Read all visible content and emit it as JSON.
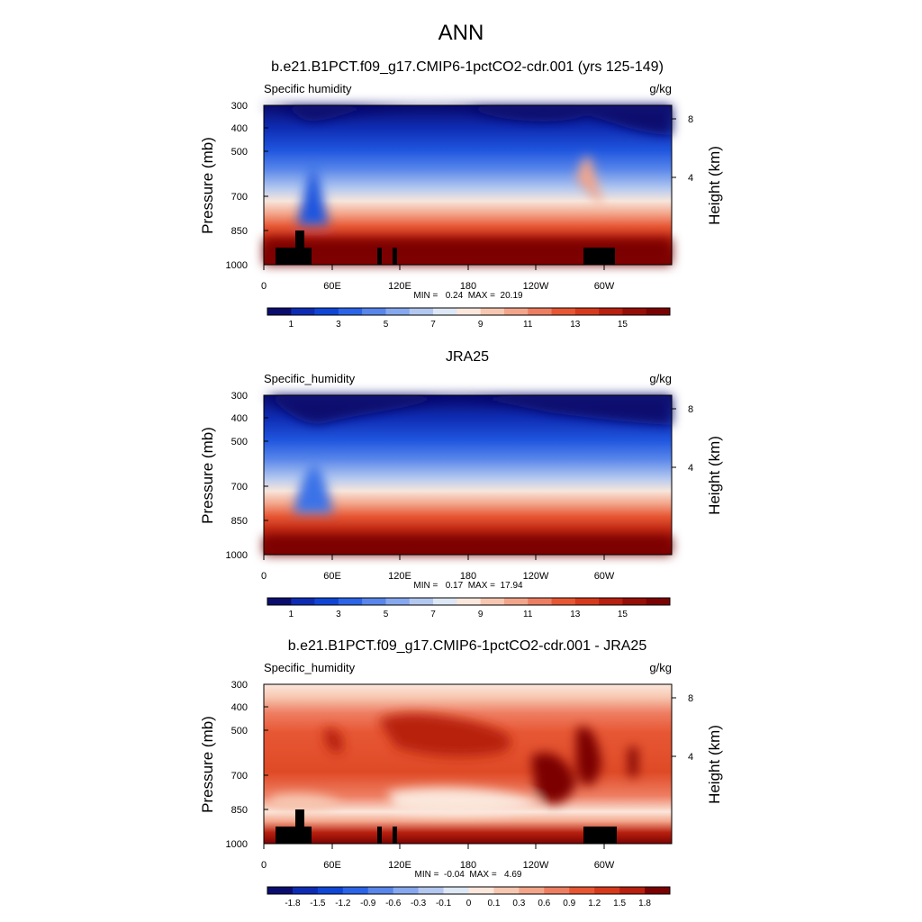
{
  "page": {
    "title": "ANN"
  },
  "chart_data": [
    {
      "type": "heatmap",
      "title": "b.e21.B1PCT.f09_g17.CMIP6-1pctCO2-cdr.001 (yrs 125-149)",
      "left_label": "Specific humidity",
      "right_label": "g/kg",
      "ylabel": "Pressure (mb)",
      "y2label": "Height (km)",
      "x_ticks": [
        "0",
        "60E",
        "120E",
        "180",
        "120W",
        "60W"
      ],
      "y_ticks": [
        "300",
        "400",
        "500",
        "700",
        "850",
        "1000"
      ],
      "y2_ticks": [
        "8",
        "4"
      ],
      "stats": "MIN =   0.24  MAX =  20.19",
      "colorbar_labels": [
        "1",
        "3",
        "5",
        "7",
        "9",
        "11",
        "13",
        "15"
      ],
      "colorbar_levels": [
        0,
        1,
        2,
        3,
        4,
        5,
        6,
        7,
        8,
        9,
        10,
        11,
        12,
        13,
        14,
        15,
        16
      ],
      "colorbar_colors": [
        "#0b0d6e",
        "#0e2cb3",
        "#1046d6",
        "#2b64e6",
        "#5886ea",
        "#86a8ee",
        "#b3c8f0",
        "#dde7f5",
        "#fbe7dc",
        "#f7c7b1",
        "#f3a58a",
        "#ee7e62",
        "#e75734",
        "#d63a1c",
        "#b8200f",
        "#960f07",
        "#7b0202"
      ],
      "value_range": [
        0.24,
        20.19
      ],
      "grid": false
    },
    {
      "type": "heatmap",
      "title": "JRA25",
      "left_label": "Specific_humidity",
      "right_label": "g/kg",
      "ylabel": "Pressure (mb)",
      "y2label": "Height (km)",
      "x_ticks": [
        "0",
        "60E",
        "120E",
        "180",
        "120W",
        "60W"
      ],
      "y_ticks": [
        "300",
        "400",
        "500",
        "700",
        "850",
        "1000"
      ],
      "y2_ticks": [
        "8",
        "4"
      ],
      "stats": "MIN =   0.17  MAX =  17.94",
      "colorbar_labels": [
        "1",
        "3",
        "5",
        "7",
        "9",
        "11",
        "13",
        "15"
      ],
      "colorbar_levels": [
        0,
        1,
        2,
        3,
        4,
        5,
        6,
        7,
        8,
        9,
        10,
        11,
        12,
        13,
        14,
        15,
        16
      ],
      "colorbar_colors": [
        "#0b0d6e",
        "#0e2cb3",
        "#1046d6",
        "#2b64e6",
        "#5886ea",
        "#86a8ee",
        "#b3c8f0",
        "#dde7f5",
        "#fbe7dc",
        "#f7c7b1",
        "#f3a58a",
        "#ee7e62",
        "#e75734",
        "#d63a1c",
        "#b8200f",
        "#960f07",
        "#7b0202"
      ],
      "value_range": [
        0.17,
        17.94
      ],
      "grid": false
    },
    {
      "type": "heatmap",
      "title": "b.e21.B1PCT.f09_g17.CMIP6-1pctCO2-cdr.001 - JRA25",
      "left_label": "Specific_humidity",
      "right_label": "g/kg",
      "ylabel": "Pressure (mb)",
      "y2label": "Height (km)",
      "x_ticks": [
        "0",
        "60E",
        "120E",
        "180",
        "120W",
        "60W"
      ],
      "y_ticks": [
        "300",
        "400",
        "500",
        "700",
        "850",
        "1000"
      ],
      "y2_ticks": [
        "8",
        "4"
      ],
      "stats": "MIN =  -0.04  MAX =   4.69",
      "colorbar_labels": [
        "-1.8",
        "-1.5",
        "-1.2",
        "-0.9",
        "-0.6",
        "-0.3",
        "-0.1",
        "0",
        "0.1",
        "0.3",
        "0.6",
        "0.9",
        "1.2",
        "1.5",
        "1.8"
      ],
      "colorbar_colors": [
        "#0b0d6e",
        "#0e2cb3",
        "#1046d6",
        "#2b64e6",
        "#5886ea",
        "#86a8ee",
        "#b3c8f0",
        "#dde7f5",
        "#fbe7dc",
        "#f7c7b1",
        "#f3a58a",
        "#ee7e62",
        "#e75734",
        "#d63a1c",
        "#b8200f",
        "#7b0202"
      ],
      "value_range": [
        -0.04,
        4.69
      ],
      "grid": false
    }
  ]
}
